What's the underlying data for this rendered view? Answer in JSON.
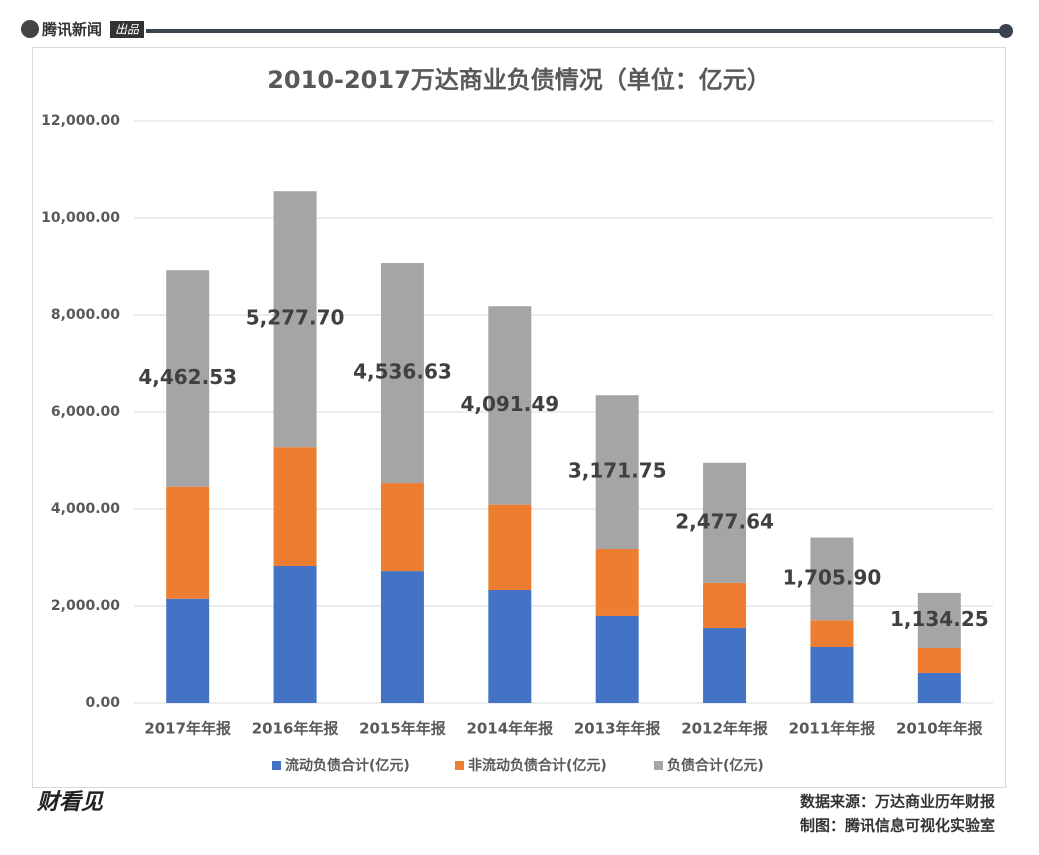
{
  "header": {
    "brand": "腾讯新闻",
    "badge": "出品"
  },
  "footer": {
    "logo": "财看见",
    "source": "数据来源：万达商业历年财报",
    "credit": "制图：腾讯信息可视化实验室"
  },
  "chart_data": {
    "type": "stacked_bar",
    "title": "2010-2017万达商业负债情况（单位：亿元）",
    "categories": [
      "2017年年报",
      "2016年年报",
      "2015年年报",
      "2014年年报",
      "2013年年报",
      "2012年年报",
      "2011年年报",
      "2010年年报"
    ],
    "series": [
      {
        "name": "流动负债合计(亿元)",
        "color": "#4472c4",
        "values": [
          2150,
          2825,
          2720,
          2330,
          1795,
          1545,
          1155,
          620
        ]
      },
      {
        "name": "非流动负债合计(亿元)",
        "color": "#ed7d31",
        "values": [
          2310,
          2450,
          1815,
          1760,
          1380,
          930,
          550,
          515
        ]
      },
      {
        "name": "负债合计(亿元)",
        "color": "#a5a5a5",
        "values": [
          4462.53,
          5277.7,
          4536.63,
          4091.49,
          3171.75,
          2477.64,
          1705.9,
          1134.25
        ],
        "value_labels": [
          "4,462.53",
          "5,277.70",
          "4,536.63",
          "4,091.49",
          "3,171.75",
          "2,477.64",
          "1,705.90",
          "1,134.25"
        ]
      }
    ],
    "ylim": [
      0,
      12000
    ],
    "yticks": [
      {
        "value": 0,
        "label": "0.00"
      },
      {
        "value": 2000,
        "label": "2,000.00"
      },
      {
        "value": 4000,
        "label": "4,000.00"
      },
      {
        "value": 6000,
        "label": "6,000.00"
      },
      {
        "value": 8000,
        "label": "8,000.00"
      },
      {
        "value": 10000,
        "label": "10,000.00"
      },
      {
        "value": 12000,
        "label": "12,000.00"
      }
    ],
    "grid": true,
    "legend": "bottom"
  }
}
